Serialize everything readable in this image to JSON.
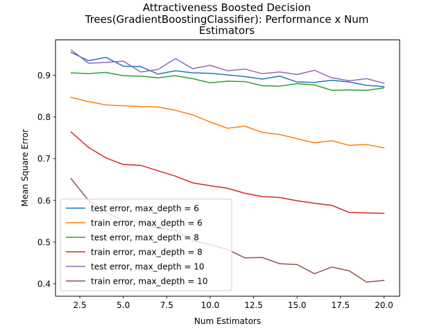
{
  "chart_data": {
    "type": "line",
    "title_lines": [
      "Attractiveness Boosted Decision",
      "Trees(GradientBoostingClassifier): Performance x Num",
      "Estimators"
    ],
    "xlabel": "Num Estimators",
    "ylabel": "Mean Square Error",
    "xlim": [
      1.1,
      20.9
    ],
    "ylim": [
      0.37,
      0.985
    ],
    "xticks": [
      2.5,
      5.0,
      7.5,
      10.0,
      12.5,
      15.0,
      17.5,
      20.0
    ],
    "xtick_labels": [
      "2.5",
      "5.0",
      "7.5",
      "10.0",
      "12.5",
      "15.0",
      "17.5",
      "20.0"
    ],
    "yticks": [
      0.4,
      0.5,
      0.6,
      0.7,
      0.8,
      0.9
    ],
    "ytick_labels": [
      "0.4",
      "0.5",
      "0.6",
      "0.7",
      "0.8",
      "0.9"
    ],
    "legend_position": "lower-left",
    "grid": false,
    "x": [
      2,
      3,
      4,
      5,
      6,
      7,
      8,
      9,
      10,
      11,
      12,
      13,
      14,
      15,
      16,
      17,
      18,
      19,
      20
    ],
    "series": [
      {
        "name": "test error, max_depth = 6",
        "color": "#1f77b4",
        "values": [
          0.955,
          0.935,
          0.943,
          0.922,
          0.921,
          0.903,
          0.911,
          0.906,
          0.905,
          0.901,
          0.897,
          0.891,
          0.898,
          0.884,
          0.883,
          0.888,
          0.884,
          0.876,
          0.873
        ]
      },
      {
        "name": "train error, max_depth = 6",
        "color": "#ff7f0e",
        "values": [
          0.847,
          0.837,
          0.829,
          0.827,
          0.825,
          0.824,
          0.816,
          0.805,
          0.788,
          0.773,
          0.778,
          0.763,
          0.758,
          0.748,
          0.738,
          0.743,
          0.732,
          0.734,
          0.726
        ]
      },
      {
        "name": "test error, max_depth = 8",
        "color": "#2ca02c",
        "values": [
          0.906,
          0.904,
          0.907,
          0.899,
          0.898,
          0.894,
          0.899,
          0.892,
          0.882,
          0.886,
          0.885,
          0.875,
          0.874,
          0.88,
          0.877,
          0.864,
          0.865,
          0.864,
          0.87
        ]
      },
      {
        "name": "train error, max_depth = 8",
        "color": "#d62728",
        "values": [
          0.764,
          0.727,
          0.702,
          0.686,
          0.684,
          0.671,
          0.658,
          0.642,
          0.635,
          0.629,
          0.617,
          0.609,
          0.607,
          0.599,
          0.593,
          0.588,
          0.571,
          0.57,
          0.569
        ]
      },
      {
        "name": "test error, max_depth = 10",
        "color": "#9467bd",
        "values": [
          0.961,
          0.929,
          0.931,
          0.934,
          0.908,
          0.914,
          0.94,
          0.916,
          0.924,
          0.911,
          0.915,
          0.904,
          0.908,
          0.902,
          0.912,
          0.894,
          0.887,
          0.892,
          0.881
        ]
      },
      {
        "name": "train error, max_depth = 10",
        "color": "#8c564b",
        "values": [
          0.652,
          0.6,
          0.571,
          0.552,
          0.547,
          0.534,
          0.527,
          0.503,
          0.494,
          0.482,
          0.462,
          0.463,
          0.448,
          0.446,
          0.424,
          0.44,
          0.431,
          0.404,
          0.408
        ]
      }
    ]
  }
}
